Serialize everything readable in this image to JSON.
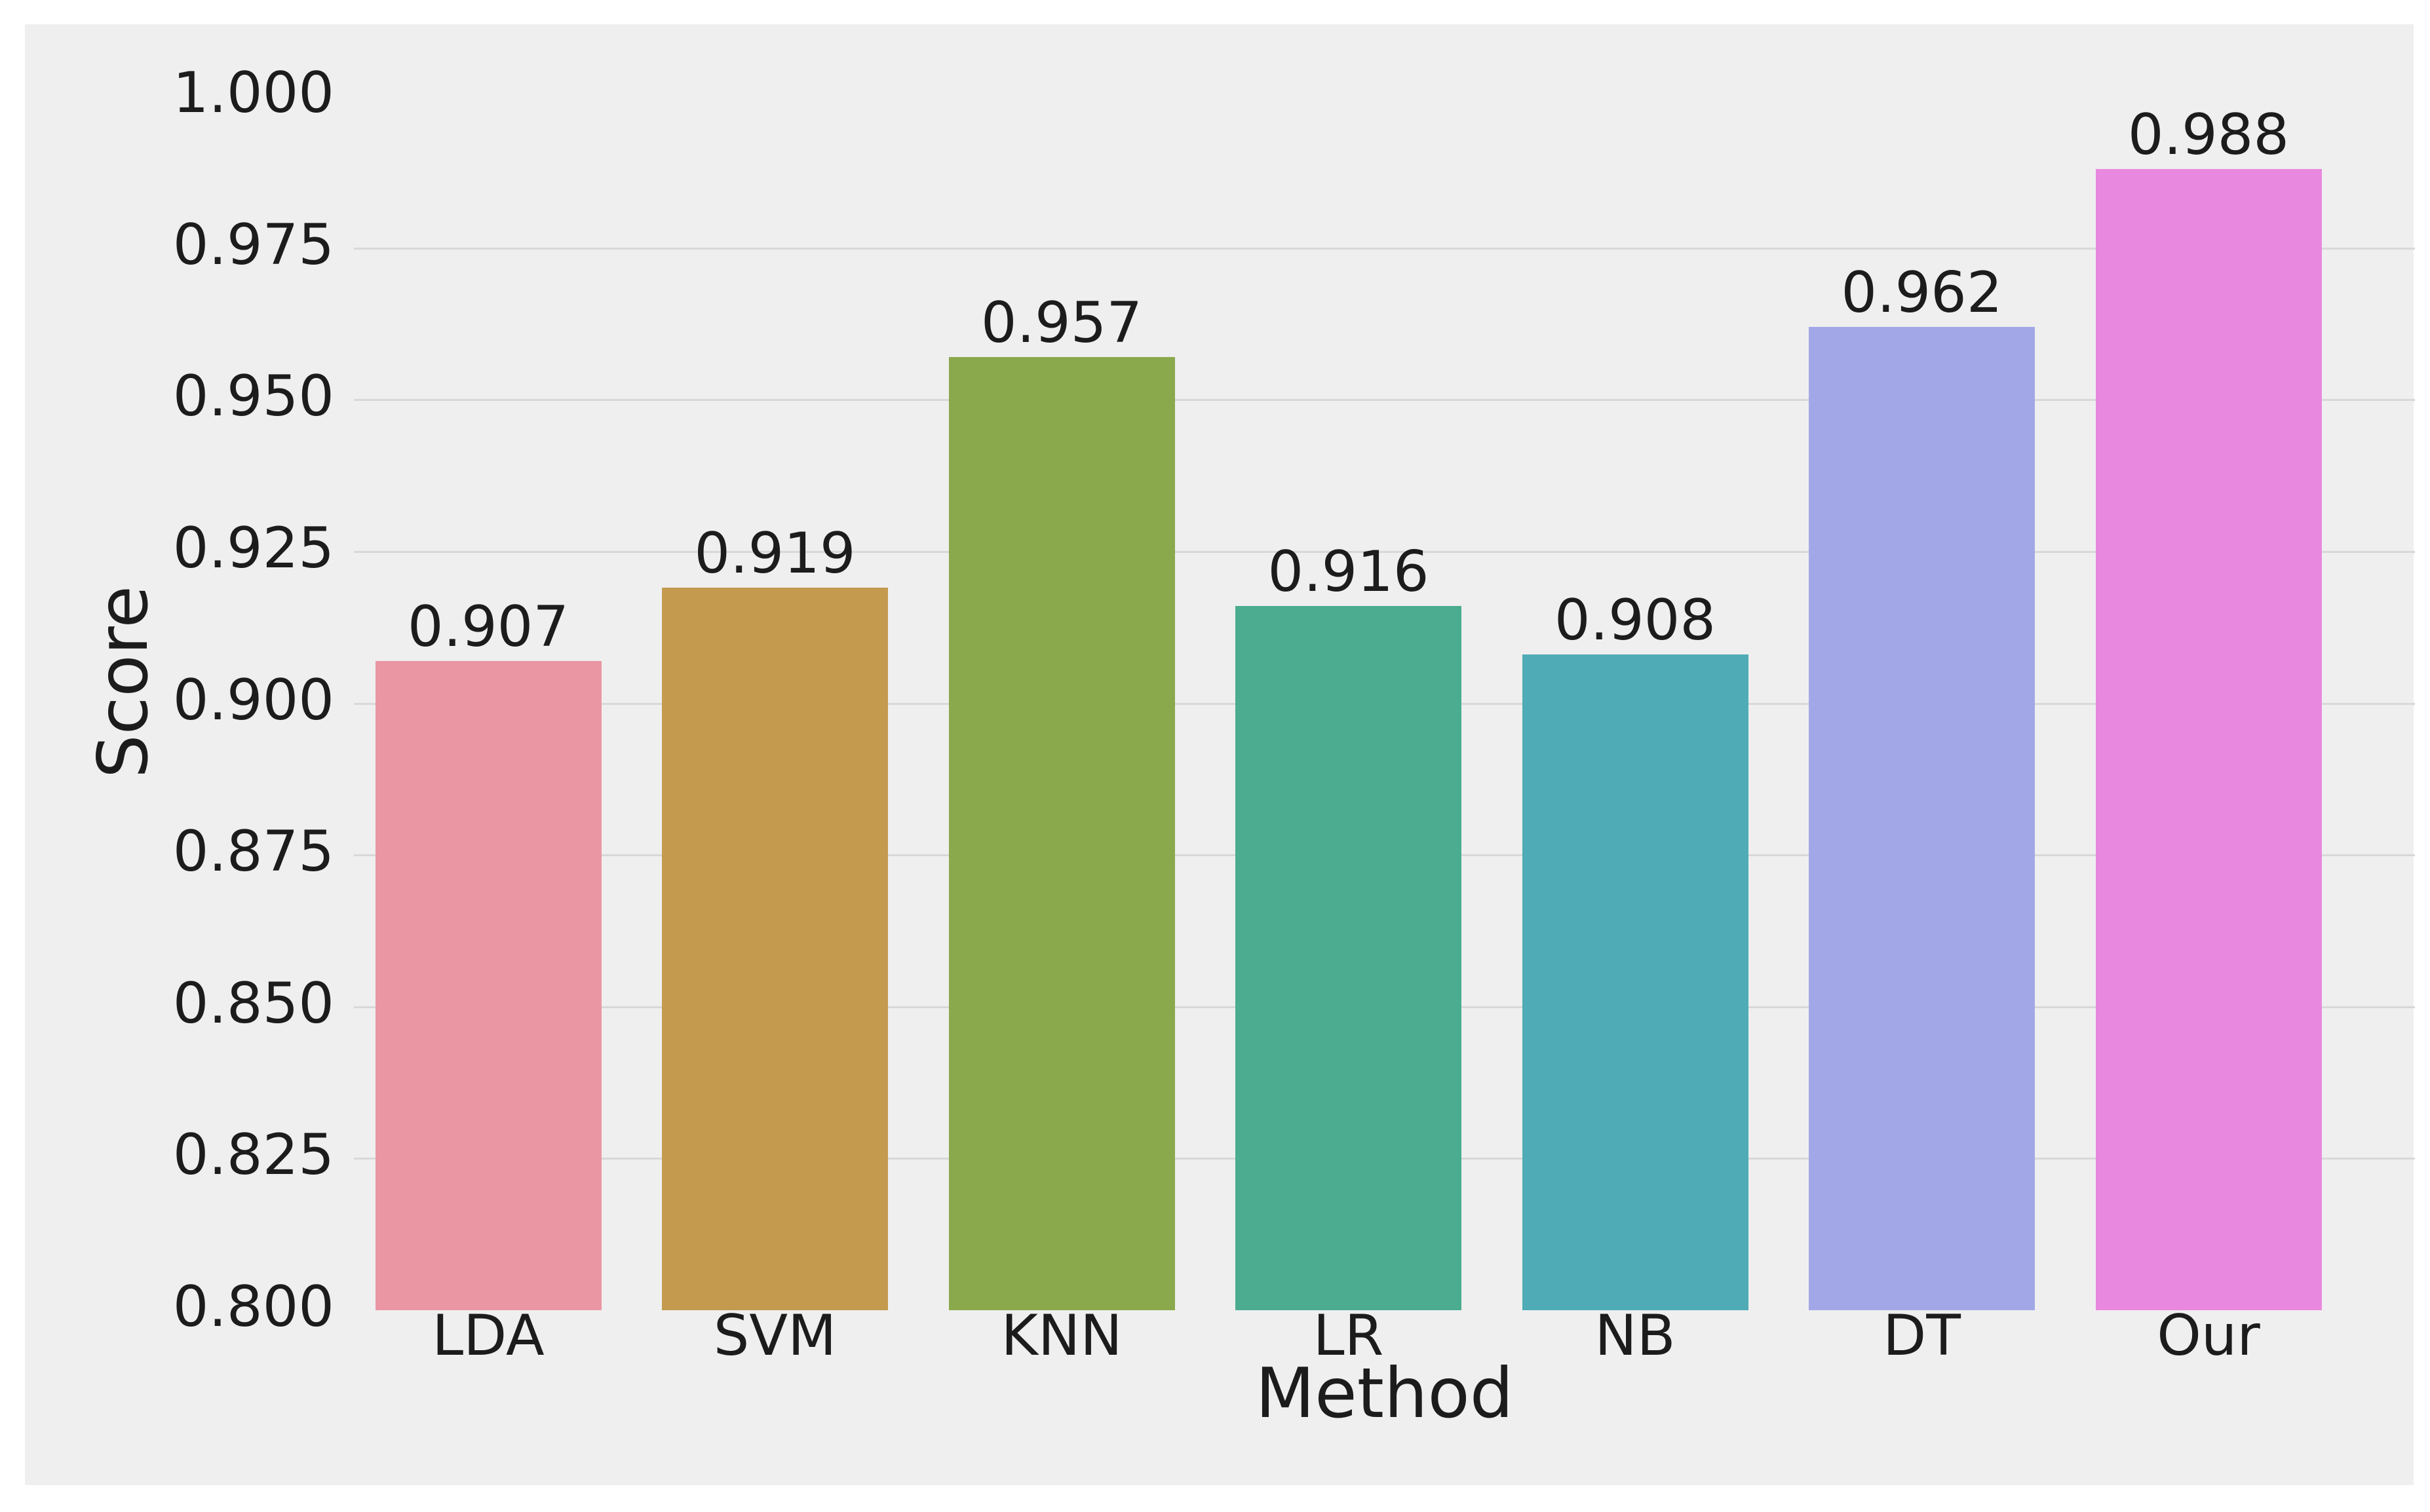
{
  "chart_data": {
    "type": "bar",
    "title": "",
    "xlabel": "Method",
    "ylabel": "Score",
    "categories": [
      "LDA",
      "SVM",
      "KNN",
      "LR",
      "NB",
      "DT",
      "Our"
    ],
    "values": [
      0.907,
      0.919,
      0.957,
      0.916,
      0.908,
      0.962,
      0.988
    ],
    "bar_value_labels": [
      "0.907",
      "0.919",
      "0.957",
      "0.916",
      "0.908",
      "0.962",
      "0.988"
    ],
    "bar_colors": [
      "#EA96A3",
      "#C49A4F",
      "#8AA94C",
      "#4BAC90",
      "#4FACB7",
      "#A2A8E7",
      "#E988DF"
    ],
    "ylim": [
      0.8,
      1.0
    ],
    "ytick_labels": [
      "1.000",
      "0.975",
      "0.950",
      "0.925",
      "0.900",
      "0.875",
      "0.850",
      "0.825",
      "0.800"
    ],
    "ytick_values": [
      1.0,
      0.975,
      0.95,
      0.925,
      0.9,
      0.875,
      0.85,
      0.825,
      0.8
    ],
    "grid": "horizontal",
    "legend": "none",
    "panel_background": "#EFEFEF",
    "figure_background": "#FFFFFF",
    "gridline_color": "#D8D8D8",
    "text_color": "#1C1C1C"
  }
}
